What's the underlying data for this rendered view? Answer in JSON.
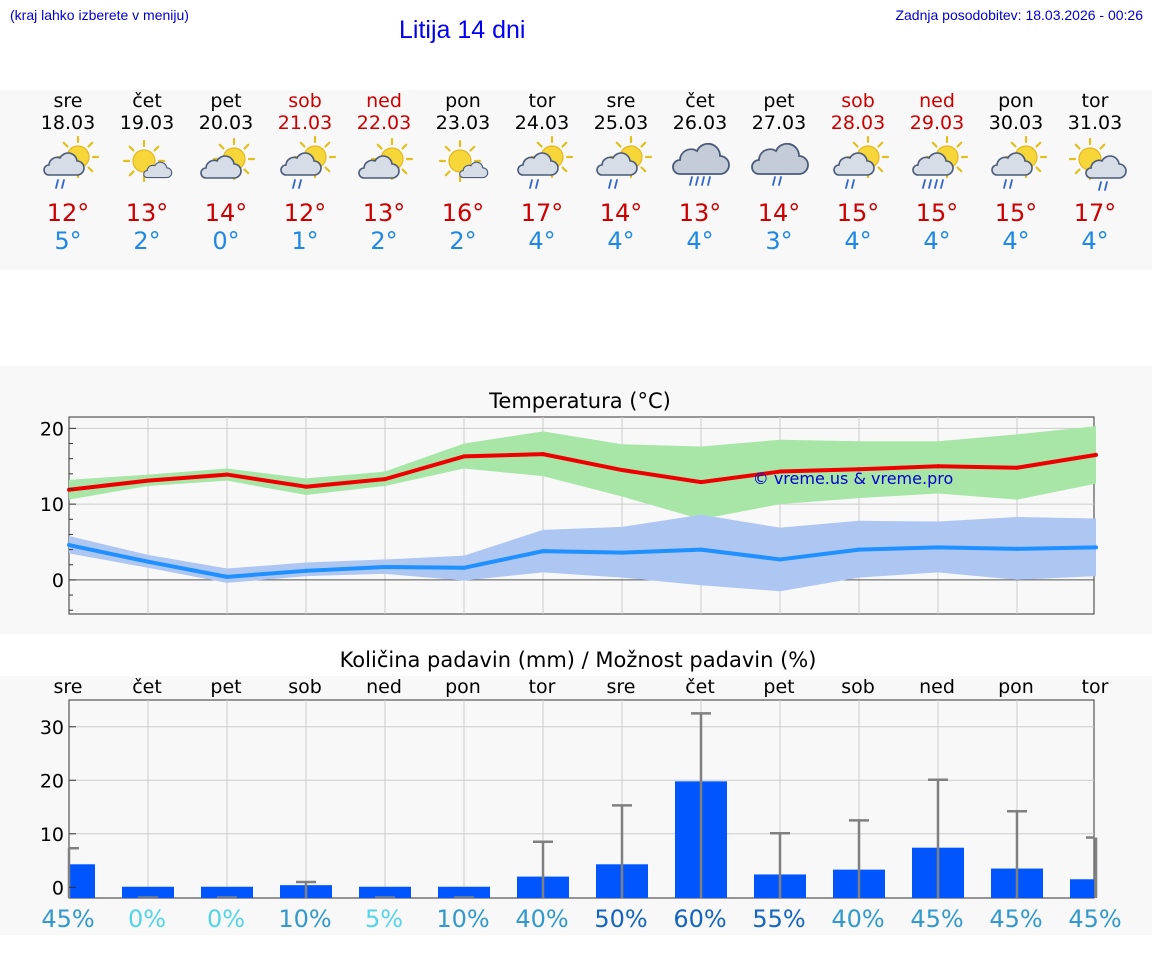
{
  "header": {
    "hint": "(kraj lahko izberete v meniju)",
    "title": "Litija 14 dni",
    "updated": "Zadnja posodobitev: 18.03.2026 - 00:26"
  },
  "colors": {
    "weekday": "#000000",
    "weekend": "#cc0000",
    "tmax": "#cc0000",
    "tmin": "#1e88e5",
    "max_line": "#ee0000",
    "max_band": "#a8e6a8",
    "min_line": "#1e90ff",
    "min_band": "#aec6f2",
    "bar": "#0055ff",
    "whisker": "#808080",
    "watermark": "#0000cc"
  },
  "forecast": {
    "days": [
      {
        "day": "sre",
        "date": "18.03",
        "weekend": false,
        "icon": "partly-sunny-rain-icon",
        "tmax": "12°",
        "tmin": "5°"
      },
      {
        "day": "čet",
        "date": "19.03",
        "weekend": false,
        "icon": "sun-small-cloud-icon",
        "tmax": "13°",
        "tmin": "2°"
      },
      {
        "day": "pet",
        "date": "20.03",
        "weekend": false,
        "icon": "partly-sunny-icon",
        "tmax": "14°",
        "tmin": "0°"
      },
      {
        "day": "sob",
        "date": "21.03",
        "weekend": true,
        "icon": "partly-sunny-rain-icon",
        "tmax": "12°",
        "tmin": "1°"
      },
      {
        "day": "ned",
        "date": "22.03",
        "weekend": true,
        "icon": "partly-sunny-icon",
        "tmax": "13°",
        "tmin": "2°"
      },
      {
        "day": "pon",
        "date": "23.03",
        "weekend": false,
        "icon": "sun-small-cloud-icon",
        "tmax": "16°",
        "tmin": "2°"
      },
      {
        "day": "tor",
        "date": "24.03",
        "weekend": false,
        "icon": "partly-sunny-rain-icon",
        "tmax": "17°",
        "tmin": "4°"
      },
      {
        "day": "sre",
        "date": "25.03",
        "weekend": false,
        "icon": "partly-sunny-rain-icon",
        "tmax": "14°",
        "tmin": "4°"
      },
      {
        "day": "čet",
        "date": "26.03",
        "weekend": false,
        "icon": "cloud-heavy-rain-icon",
        "tmax": "13°",
        "tmin": "4°"
      },
      {
        "day": "pet",
        "date": "27.03",
        "weekend": false,
        "icon": "cloud-rain-icon",
        "tmax": "14°",
        "tmin": "3°"
      },
      {
        "day": "sob",
        "date": "28.03",
        "weekend": true,
        "icon": "partly-sunny-rain-icon",
        "tmax": "15°",
        "tmin": "4°"
      },
      {
        "day": "ned",
        "date": "29.03",
        "weekend": true,
        "icon": "partly-sunny-heavy-rain-icon",
        "tmax": "15°",
        "tmin": "4°"
      },
      {
        "day": "pon",
        "date": "30.03",
        "weekend": false,
        "icon": "partly-sunny-rain-icon",
        "tmax": "15°",
        "tmin": "4°"
      },
      {
        "day": "tor",
        "date": "31.03",
        "weekend": false,
        "icon": "sun-cloud-rain-icon",
        "tmax": "17°",
        "tmin": "4°"
      }
    ]
  },
  "chart_data": [
    {
      "type": "line",
      "title": "Temperatura (°C)",
      "ylim": [
        -4.5,
        21.5
      ],
      "yticks": [
        "20",
        "10",
        "0"
      ],
      "watermark": "© vreme.us & vreme.pro",
      "x": [
        0,
        1,
        2,
        3,
        4,
        5,
        6,
        7,
        8,
        9,
        10,
        11,
        12,
        13
      ],
      "series": [
        {
          "name": "max",
          "values": [
            11.9,
            13.1,
            13.9,
            12.3,
            13.3,
            16.3,
            16.6,
            14.5,
            12.9,
            14.3,
            14.6,
            15.0,
            14.8,
            16.5
          ],
          "band_low": [
            10.6,
            12.4,
            13.1,
            11.2,
            12.4,
            14.7,
            13.7,
            11.0,
            8.0,
            10.0,
            10.8,
            11.4,
            10.6,
            12.7
          ],
          "band_high": [
            13.2,
            13.9,
            14.7,
            13.4,
            14.3,
            18.0,
            19.6,
            17.9,
            17.6,
            18.5,
            18.3,
            18.3,
            19.2,
            20.3
          ]
        },
        {
          "name": "min",
          "values": [
            4.6,
            2.4,
            0.4,
            1.2,
            1.7,
            1.6,
            3.8,
            3.6,
            4.0,
            2.7,
            4.0,
            4.3,
            4.1,
            4.3
          ],
          "band_low": [
            3.5,
            1.6,
            -0.4,
            0.5,
            0.8,
            -0.1,
            1.0,
            0.3,
            -0.7,
            -1.5,
            0.3,
            1.0,
            0.0,
            0.5
          ],
          "band_high": [
            5.8,
            3.3,
            1.5,
            2.3,
            2.7,
            3.2,
            6.6,
            7.0,
            8.6,
            6.9,
            7.8,
            7.7,
            8.3,
            8.1
          ]
        }
      ]
    },
    {
      "type": "bar",
      "title": "Količina padavin (mm) / Možnost padavin (%)",
      "categories": [
        "sre",
        "čet",
        "pet",
        "sob",
        "ned",
        "pon",
        "tor",
        "sre",
        "čet",
        "pet",
        "sob",
        "ned",
        "pon",
        "tor"
      ],
      "ylim": [
        -2,
        35
      ],
      "yticks": [
        "30",
        "20",
        "10",
        "0"
      ],
      "values": [
        4.3,
        0.1,
        0.1,
        0.4,
        0.1,
        0.1,
        2.0,
        4.3,
        19.8,
        2.4,
        3.3,
        7.4,
        3.5,
        1.5
      ],
      "error_high": [
        7.3,
        0,
        0,
        1.0,
        0,
        0,
        8.5,
        15.3,
        32.5,
        10.1,
        12.5,
        20.1,
        14.2,
        9.3
      ],
      "probability_labels": [
        "45%",
        "0%",
        "0%",
        "10%",
        "5%",
        "10%",
        "40%",
        "50%",
        "60%",
        "55%",
        "40%",
        "45%",
        "45%",
        "45%"
      ],
      "probability_colors": [
        "#3399cc",
        "#55d4e8",
        "#55d4e8",
        "#3399cc",
        "#55d4e8",
        "#3399cc",
        "#3399cc",
        "#1565c0",
        "#1565c0",
        "#1565c0",
        "#3399cc",
        "#3399cc",
        "#3399cc",
        "#3399cc"
      ]
    }
  ]
}
